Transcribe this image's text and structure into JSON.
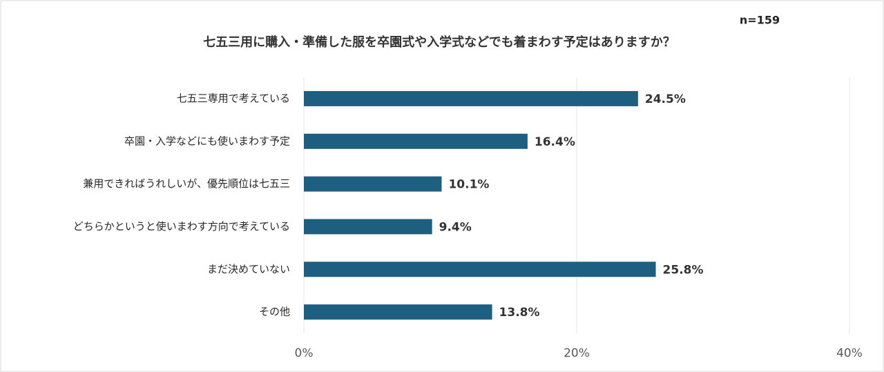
{
  "chart_data": {
    "type": "bar",
    "orientation": "horizontal",
    "title": "七五三用に購入・準備した服を卒園式や入学式などでも着まわす予定はありますか？",
    "annotation": "n=159",
    "categories": [
      "七五三専用で考えている",
      "卒園・入学などにも使いまわす予定",
      "兼用できればうれしいが、優先順位は七五三",
      "どちらかというと使いまわす方向で考えている",
      "まだ決めていない",
      "その他"
    ],
    "values": [
      24.5,
      16.4,
      10.1,
      9.4,
      25.8,
      13.8
    ],
    "value_labels": [
      "24.5%",
      "16.4%",
      "10.1%",
      "9.4%",
      "25.8%",
      "13.8%"
    ],
    "color": "#1d5f80",
    "xlim": [
      0,
      40
    ],
    "xticks": [
      {
        "value": 0,
        "label": "0%"
      },
      {
        "value": 20,
        "label": "20%"
      },
      {
        "value": 40,
        "label": "40%"
      }
    ],
    "grid": true
  }
}
